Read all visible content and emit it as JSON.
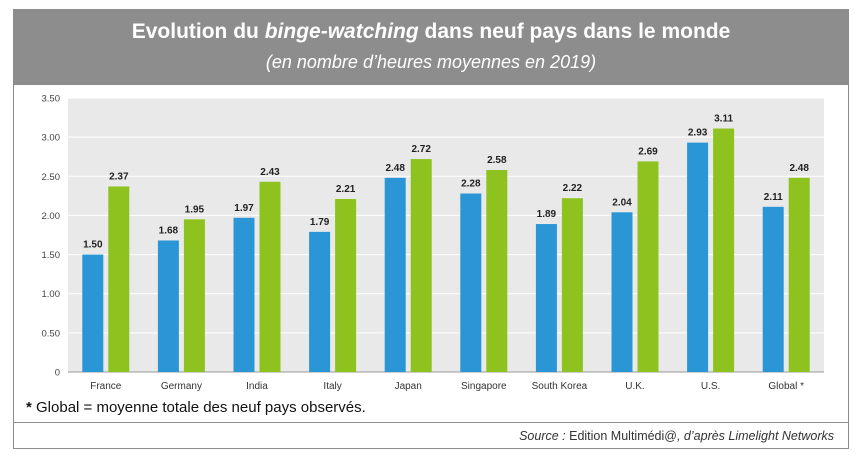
{
  "header": {
    "title_before": "Evolution du ",
    "title_emph": "binge-watching",
    "title_after": " dans neuf pays dans le monde",
    "subtitle": "(en nombre d’heures moyennes en 2019)"
  },
  "chart_data": {
    "type": "bar",
    "categories": [
      "France",
      "Germany",
      "India",
      "Italy",
      "Japan",
      "Singapore",
      "South Korea",
      "U.K.",
      "U.S.",
      "Global *"
    ],
    "series": [
      {
        "values": [
          1.5,
          1.68,
          1.97,
          1.79,
          2.48,
          2.28,
          1.89,
          2.04,
          2.93,
          2.11
        ],
        "color": "#2a96d6"
      },
      {
        "values": [
          2.37,
          1.95,
          2.43,
          2.21,
          2.72,
          2.58,
          2.22,
          2.69,
          3.11,
          2.48
        ],
        "color": "#8dc21f"
      }
    ],
    "value_labels": [
      [
        "1.50",
        "1.68",
        "1.97",
        "1.79",
        "2.48",
        "2.28",
        "1.89",
        "2.04",
        "2.93",
        "2.11"
      ],
      [
        "2.37",
        "1.95",
        "2.43",
        "2.21",
        "2.72",
        "2.58",
        "2.22",
        "2.69",
        "3.11",
        "2.48"
      ]
    ],
    "y_ticks": [
      "0",
      "0.50",
      "1.00",
      "1.50",
      "2.00",
      "2.50",
      "3.00",
      "3.50"
    ],
    "ylim": [
      0,
      3.5
    ],
    "grid": true,
    "plot_background": "#e9e9e9",
    "xlabel": "",
    "ylabel": ""
  },
  "footnote": {
    "marker": "*",
    "text": " Global = moyenne totale des neuf pays observés."
  },
  "source": {
    "label": "Source : ",
    "publisher": "Edition Multimédi@",
    "attribution": ", d’après Limelight Networks"
  }
}
